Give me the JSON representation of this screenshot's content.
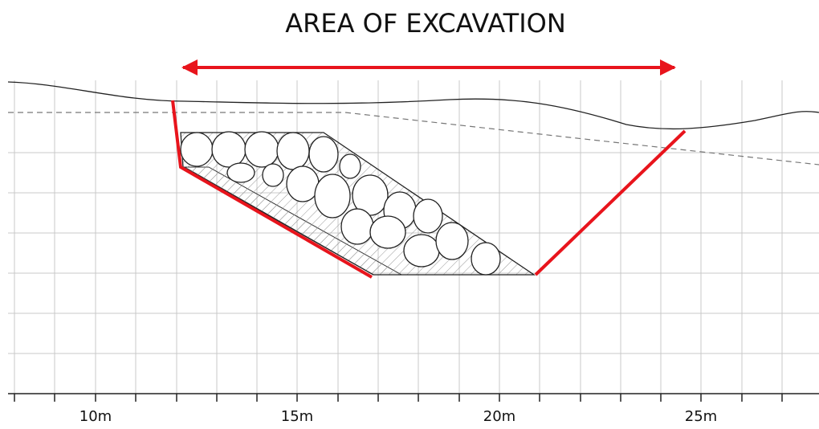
{
  "title": "AREA OF EXCAVATION",
  "axis": {
    "labels": [
      "10m",
      "15m",
      "20m",
      "25m"
    ]
  }
}
